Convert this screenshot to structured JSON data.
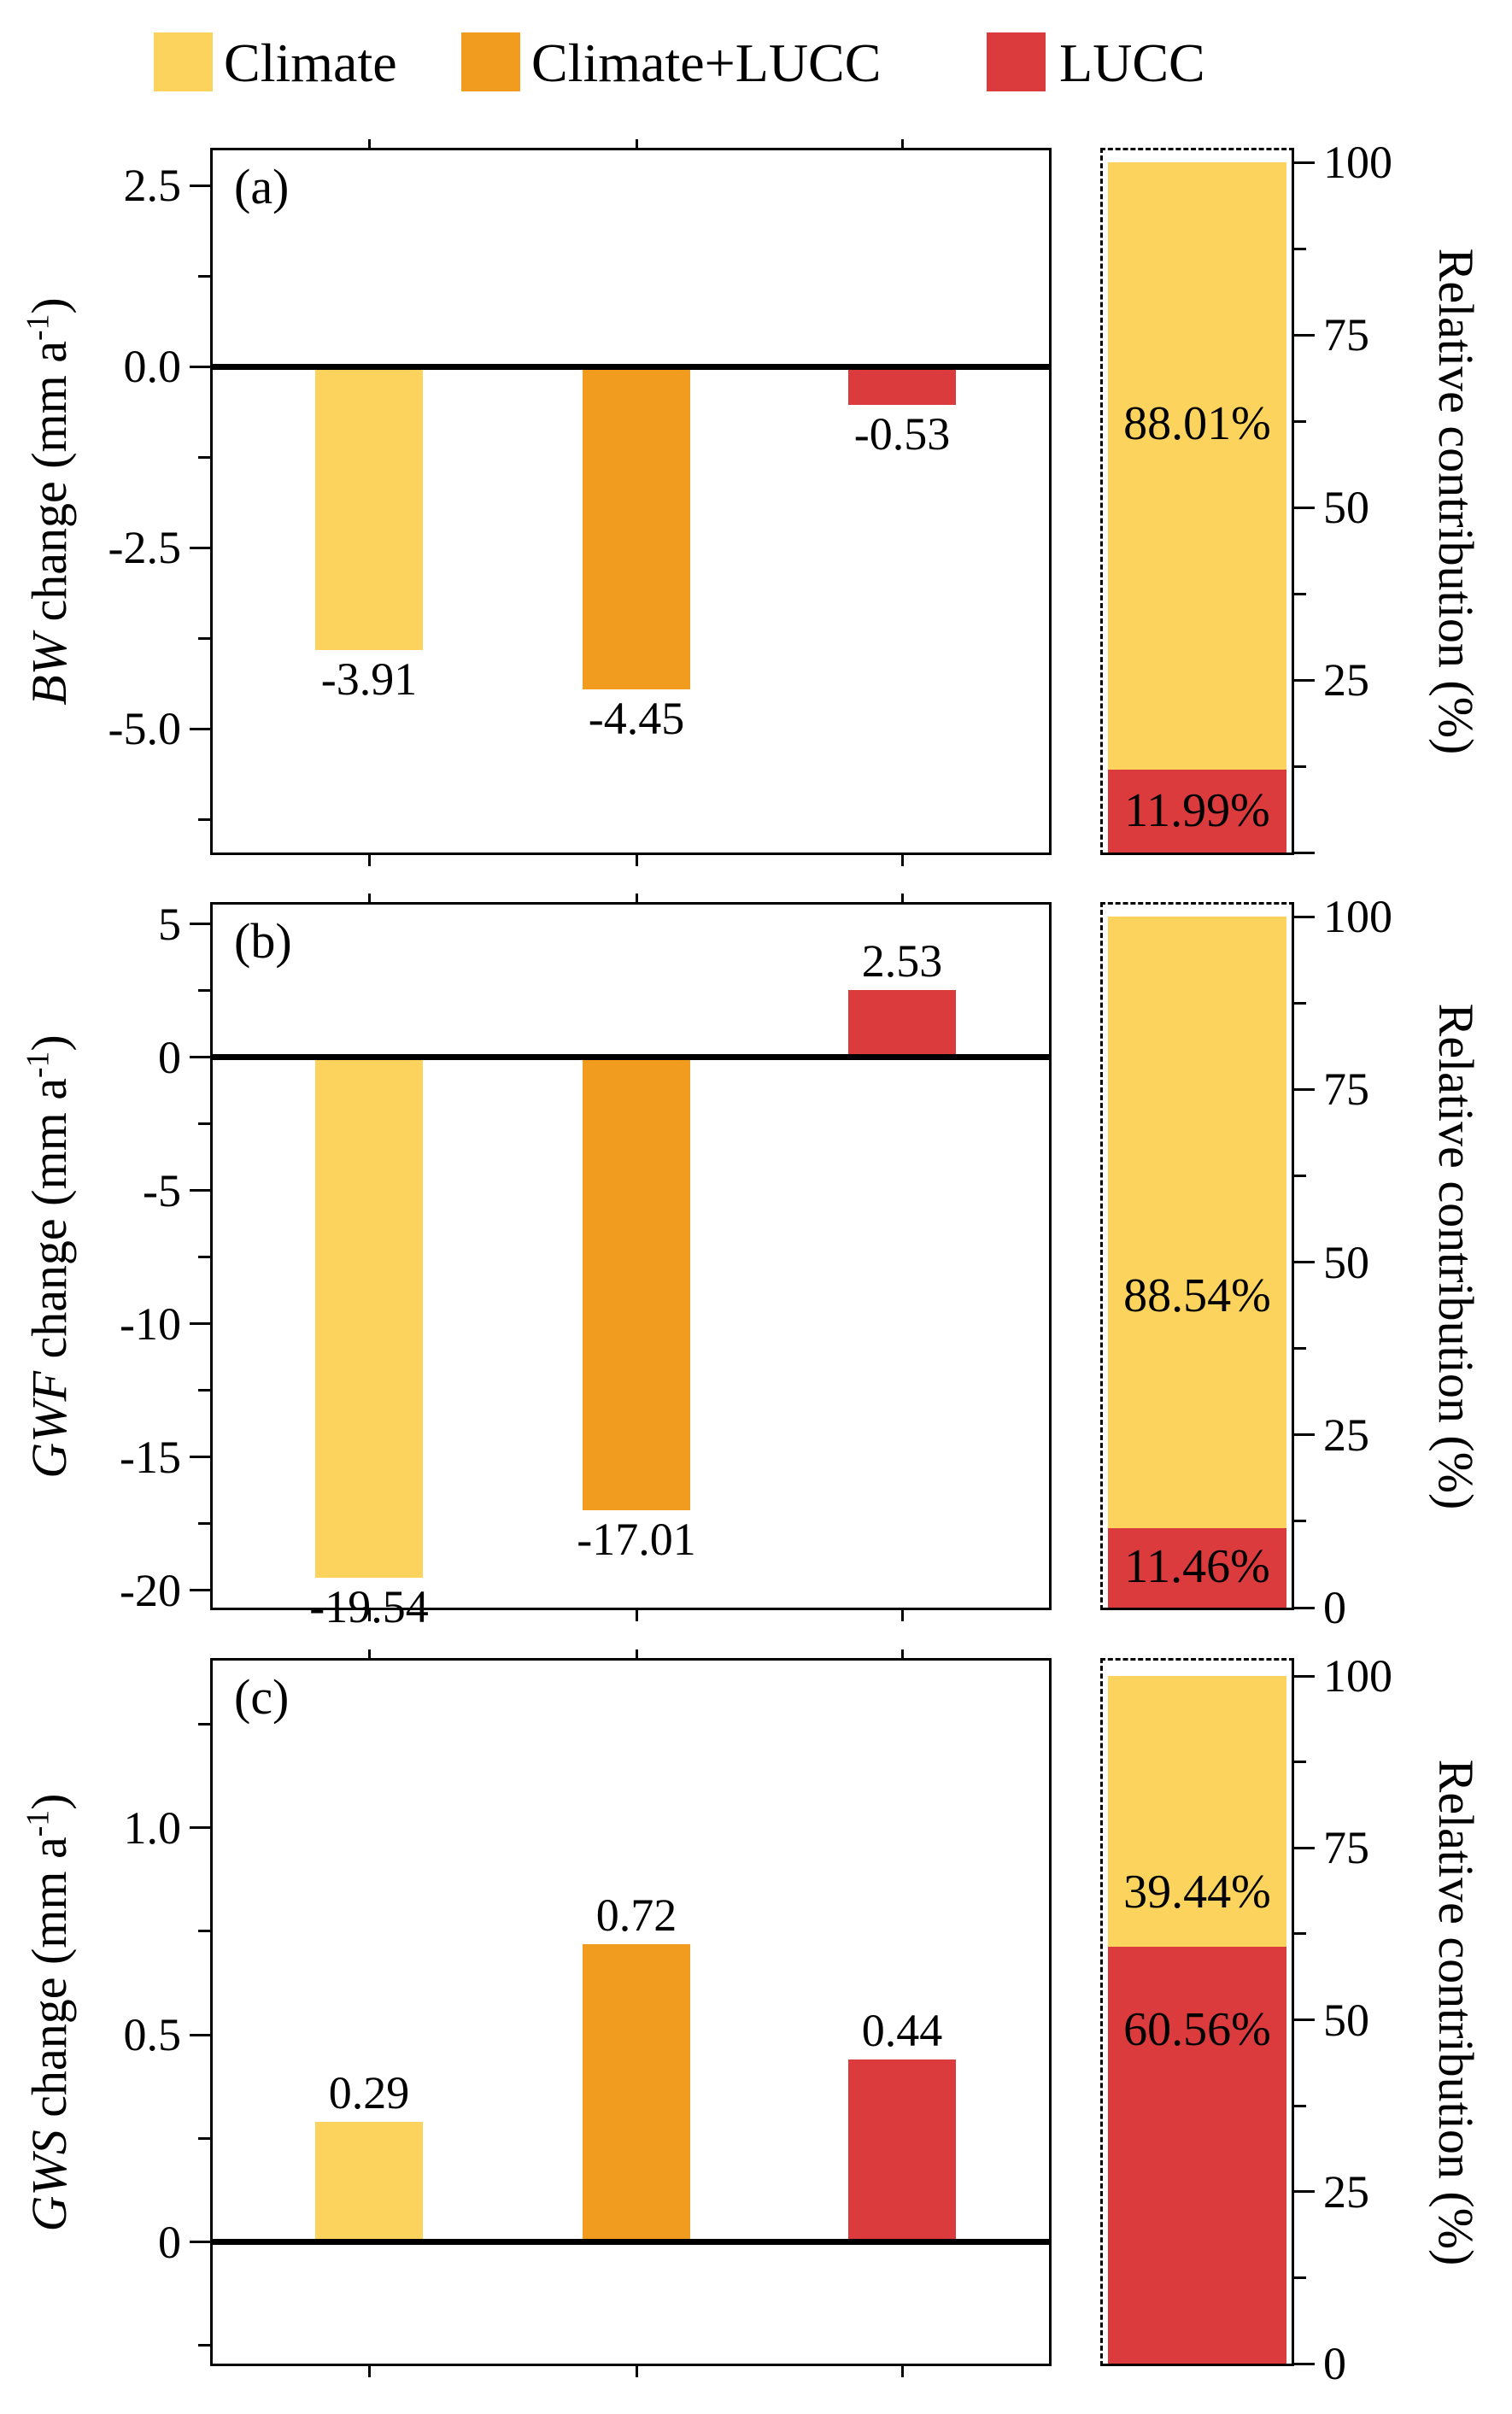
{
  "colors": {
    "climate": "#FCD35C",
    "climate_lucc": "#F29C1F",
    "lucc": "#DB3B3C",
    "axis": "#000000",
    "background": "#FFFFFF"
  },
  "legend": {
    "items": [
      {
        "name": "climate",
        "label": "Climate",
        "color_key": "climate"
      },
      {
        "name": "climate-lucc",
        "label": "Climate+LUCC",
        "color_key": "climate_lucc"
      },
      {
        "name": "lucc",
        "label": "LUCC",
        "color_key": "lucc"
      }
    ]
  },
  "right_axis_title": "Relative contribution (%)",
  "chart_data": [
    {
      "type": "bar",
      "panel_label": "(a)",
      "ylabel": {
        "italic": "BW",
        "rest": " change (mm a",
        "sup": "-1",
        "close": ")"
      },
      "categories": [
        "Climate",
        "Climate+LUCC",
        "LUCC"
      ],
      "series": [
        {
          "name": "BW change",
          "values": [
            -3.91,
            -4.45,
            -0.53
          ]
        }
      ],
      "value_labels": [
        "-3.91",
        "-4.45",
        "-0.53"
      ],
      "bar_color_keys": [
        "climate",
        "climate_lucc",
        "lucc"
      ],
      "ylim": [
        3.02,
        -6.74
      ],
      "yticks": [
        {
          "v": 2.5,
          "t": "2.5"
        },
        {
          "v": 0,
          "t": "0.0"
        },
        {
          "v": -2.5,
          "t": "-2.5"
        },
        {
          "v": -5,
          "t": "-5.0"
        }
      ],
      "minor_ticks": [
        1.25,
        -1.25,
        -3.75,
        -6.25
      ],
      "grid": false,
      "contribution": {
        "ylim": [
          0,
          100
        ],
        "segments": [
          {
            "key": "climate",
            "pct": 88.01,
            "label": "88.01%",
            "label_at": 62
          },
          {
            "key": "lucc",
            "pct": 11.99,
            "label": "11.99%",
            "label_at": 6
          }
        ],
        "yticks": [
          {
            "v": 100,
            "t": "100"
          },
          {
            "v": 75,
            "t": "75"
          },
          {
            "v": 50,
            "t": "50"
          },
          {
            "v": 25,
            "t": "25"
          },
          {
            "v": 0,
            "t": ""
          }
        ],
        "minor_ticks": [
          87.5,
          62.5,
          37.5,
          12.5
        ]
      }
    },
    {
      "type": "bar",
      "panel_label": "(b)",
      "ylabel": {
        "italic": "GWF",
        "rest": " change (mm a",
        "sup": "-1",
        "close": ")"
      },
      "categories": [
        "Climate",
        "Climate+LUCC",
        "LUCC"
      ],
      "series": [
        {
          "name": "GWF change",
          "values": [
            -19.54,
            -17.01,
            2.53
          ]
        }
      ],
      "value_labels": [
        "-19.54",
        "-17.01",
        "2.53"
      ],
      "bar_color_keys": [
        "climate",
        "climate_lucc",
        "lucc"
      ],
      "ylim": [
        5.83,
        -20.75
      ],
      "yticks": [
        {
          "v": 5,
          "t": "5"
        },
        {
          "v": 0,
          "t": "0"
        },
        {
          "v": -5,
          "t": "-5"
        },
        {
          "v": -10,
          "t": "-10"
        },
        {
          "v": -15,
          "t": "-15"
        },
        {
          "v": -20,
          "t": "-20"
        }
      ],
      "minor_ticks": [
        2.5,
        -2.5,
        -7.5,
        -12.5,
        -17.5
      ],
      "grid": false,
      "contribution": {
        "ylim": [
          0,
          100
        ],
        "segments": [
          {
            "key": "climate",
            "pct": 88.54,
            "label": "88.54%",
            "label_at": 45
          },
          {
            "key": "lucc",
            "pct": 11.46,
            "label": "11.46%",
            "label_at": 5.75
          }
        ],
        "yticks": [
          {
            "v": 100,
            "t": "100"
          },
          {
            "v": 75,
            "t": "75"
          },
          {
            "v": 50,
            "t": "50"
          },
          {
            "v": 25,
            "t": "25"
          },
          {
            "v": 0,
            "t": "0"
          }
        ],
        "minor_ticks": [
          87.5,
          62.5,
          37.5,
          12.5
        ]
      }
    },
    {
      "type": "bar",
      "panel_label": "(c)",
      "ylabel": {
        "italic": "GWS",
        "rest": " change (mm a",
        "sup": "-1",
        "close": ")"
      },
      "categories": [
        "Climate",
        "Climate+LUCC",
        "LUCC"
      ],
      "series": [
        {
          "name": "GWS change",
          "values": [
            0.29,
            0.72,
            0.44
          ]
        }
      ],
      "value_labels": [
        "0.29",
        "0.72",
        "0.44"
      ],
      "bar_color_keys": [
        "climate",
        "climate_lucc",
        "lucc"
      ],
      "ylim": [
        1.41,
        -0.3
      ],
      "yticks": [
        {
          "v": 1.0,
          "t": "1.0"
        },
        {
          "v": 0.5,
          "t": "0.5"
        },
        {
          "v": 0,
          "t": "0"
        }
      ],
      "minor_ticks": [
        1.25,
        0.75,
        0.25,
        -0.25
      ],
      "grid": false,
      "contribution": {
        "ylim": [
          0,
          100
        ],
        "segments": [
          {
            "key": "climate",
            "pct": 39.44,
            "label": "39.44%",
            "label_at": 68.5
          },
          {
            "key": "lucc",
            "pct": 60.56,
            "label": "60.56%",
            "label_at": 48.5
          }
        ],
        "yticks": [
          {
            "v": 100,
            "t": "100"
          },
          {
            "v": 75,
            "t": "75"
          },
          {
            "v": 50,
            "t": "50"
          },
          {
            "v": 25,
            "t": "25"
          },
          {
            "v": 0,
            "t": "0"
          }
        ],
        "minor_ticks": [
          87.5,
          62.5,
          37.5,
          12.5
        ]
      }
    }
  ]
}
